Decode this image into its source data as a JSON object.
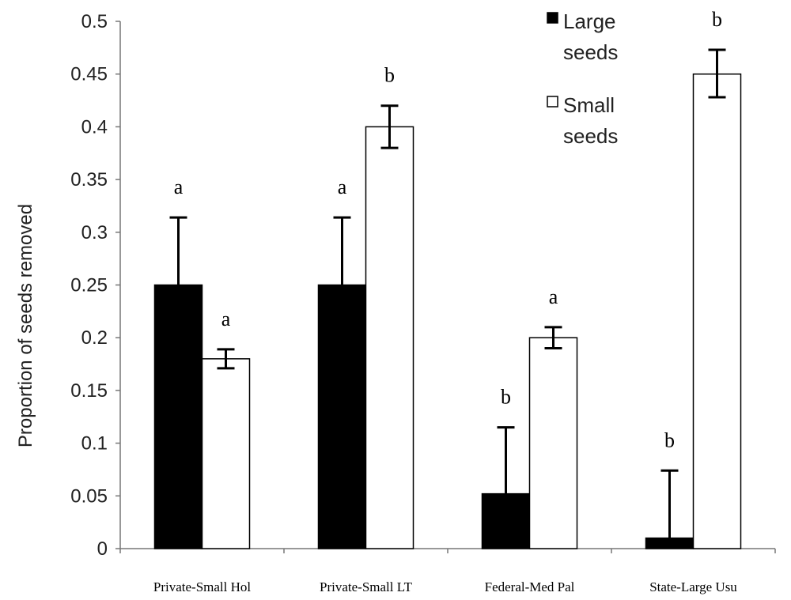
{
  "chart_data": {
    "type": "bar",
    "title": "",
    "xlabel": "",
    "ylabel": "Proportion of seeds removed",
    "ylim": [
      0,
      0.5
    ],
    "yticks": [
      "0",
      "0.05",
      "0.1",
      "0.15",
      "0.2",
      "0.25",
      "0.3",
      "0.35",
      "0.4",
      "0.45",
      "0.5"
    ],
    "categories": [
      "Private-Small Hol",
      "Private-Small LT",
      "Federal-Med Pal",
      "State-Large Usu"
    ],
    "grid": false,
    "legend_position": "top-right",
    "series": [
      {
        "name": "Large\nseeds",
        "color": "#000000",
        "values": [
          0.25,
          0.25,
          0.052,
          0.01
        ],
        "error_upper": [
          0.314,
          0.314,
          0.115,
          0.074
        ],
        "error_lower": [
          0.25,
          0.25,
          0.052,
          0.01
        ],
        "significance": [
          "a",
          "a",
          "b",
          "b"
        ]
      },
      {
        "name": "Small\nseeds",
        "color": "#ffffff",
        "values": [
          0.18,
          0.4,
          0.2,
          0.45
        ],
        "error_upper": [
          0.189,
          0.42,
          0.21,
          0.473
        ],
        "error_lower": [
          0.171,
          0.38,
          0.19,
          0.428
        ],
        "significance": [
          "a",
          "b",
          "a",
          "b"
        ]
      }
    ]
  }
}
